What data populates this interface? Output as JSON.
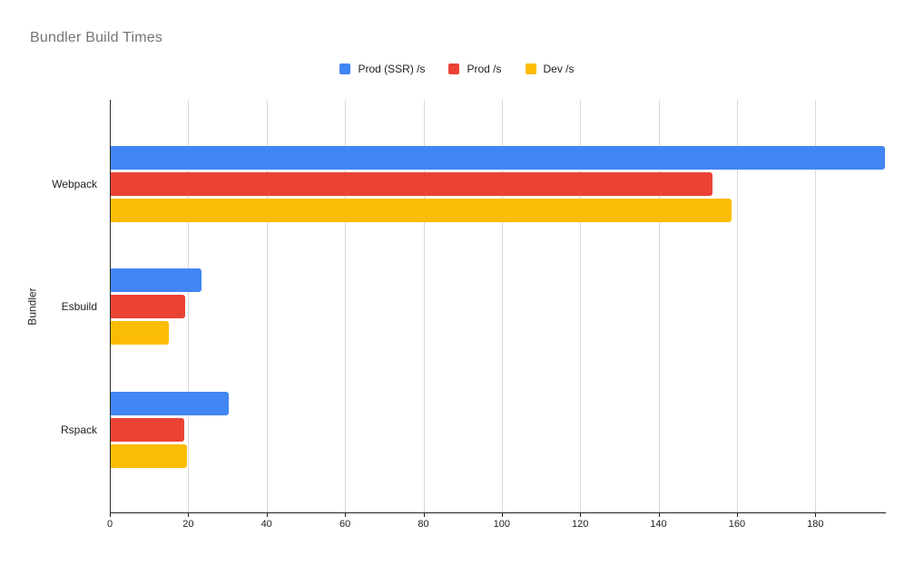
{
  "title": "Bundler Build Times",
  "colors": {
    "background": "#ffffff",
    "title_text": "#757575",
    "axis_text": "#202124",
    "gridline": "#d9d9d9",
    "axis_line": "#212121",
    "series_blue": "#4285F4",
    "series_red": "#EA4335",
    "series_yellow": "#FBBC04"
  },
  "legend": {
    "position": "top-center",
    "items": [
      {
        "label": "Prod (SSR) /s",
        "color": "#4285F4"
      },
      {
        "label": "Prod /s",
        "color": "#EA4335"
      },
      {
        "label": "Dev /s",
        "color": "#FBBC04"
      }
    ]
  },
  "chart_data": {
    "type": "bar",
    "orientation": "horizontal",
    "title": "Bundler Build Times",
    "xlabel": "",
    "ylabel": "Bundler",
    "categories": [
      "Webpack",
      "Esbuild",
      "Rspack"
    ],
    "series": [
      {
        "name": "Prod (SSR) /s",
        "color": "#4285F4",
        "values": [
          197.8,
          23.3,
          30.3
        ]
      },
      {
        "name": "Prod /s",
        "color": "#EA4335",
        "values": [
          153.8,
          19.2,
          18.9
        ]
      },
      {
        "name": "Dev /s",
        "color": "#FBBC04",
        "values": [
          158.6,
          15.1,
          19.6
        ]
      }
    ],
    "xlim": [
      0,
      198
    ],
    "xticks": [
      0,
      20,
      40,
      60,
      80,
      100,
      120,
      140,
      160,
      180
    ],
    "grid": true,
    "legend_position": "top"
  }
}
